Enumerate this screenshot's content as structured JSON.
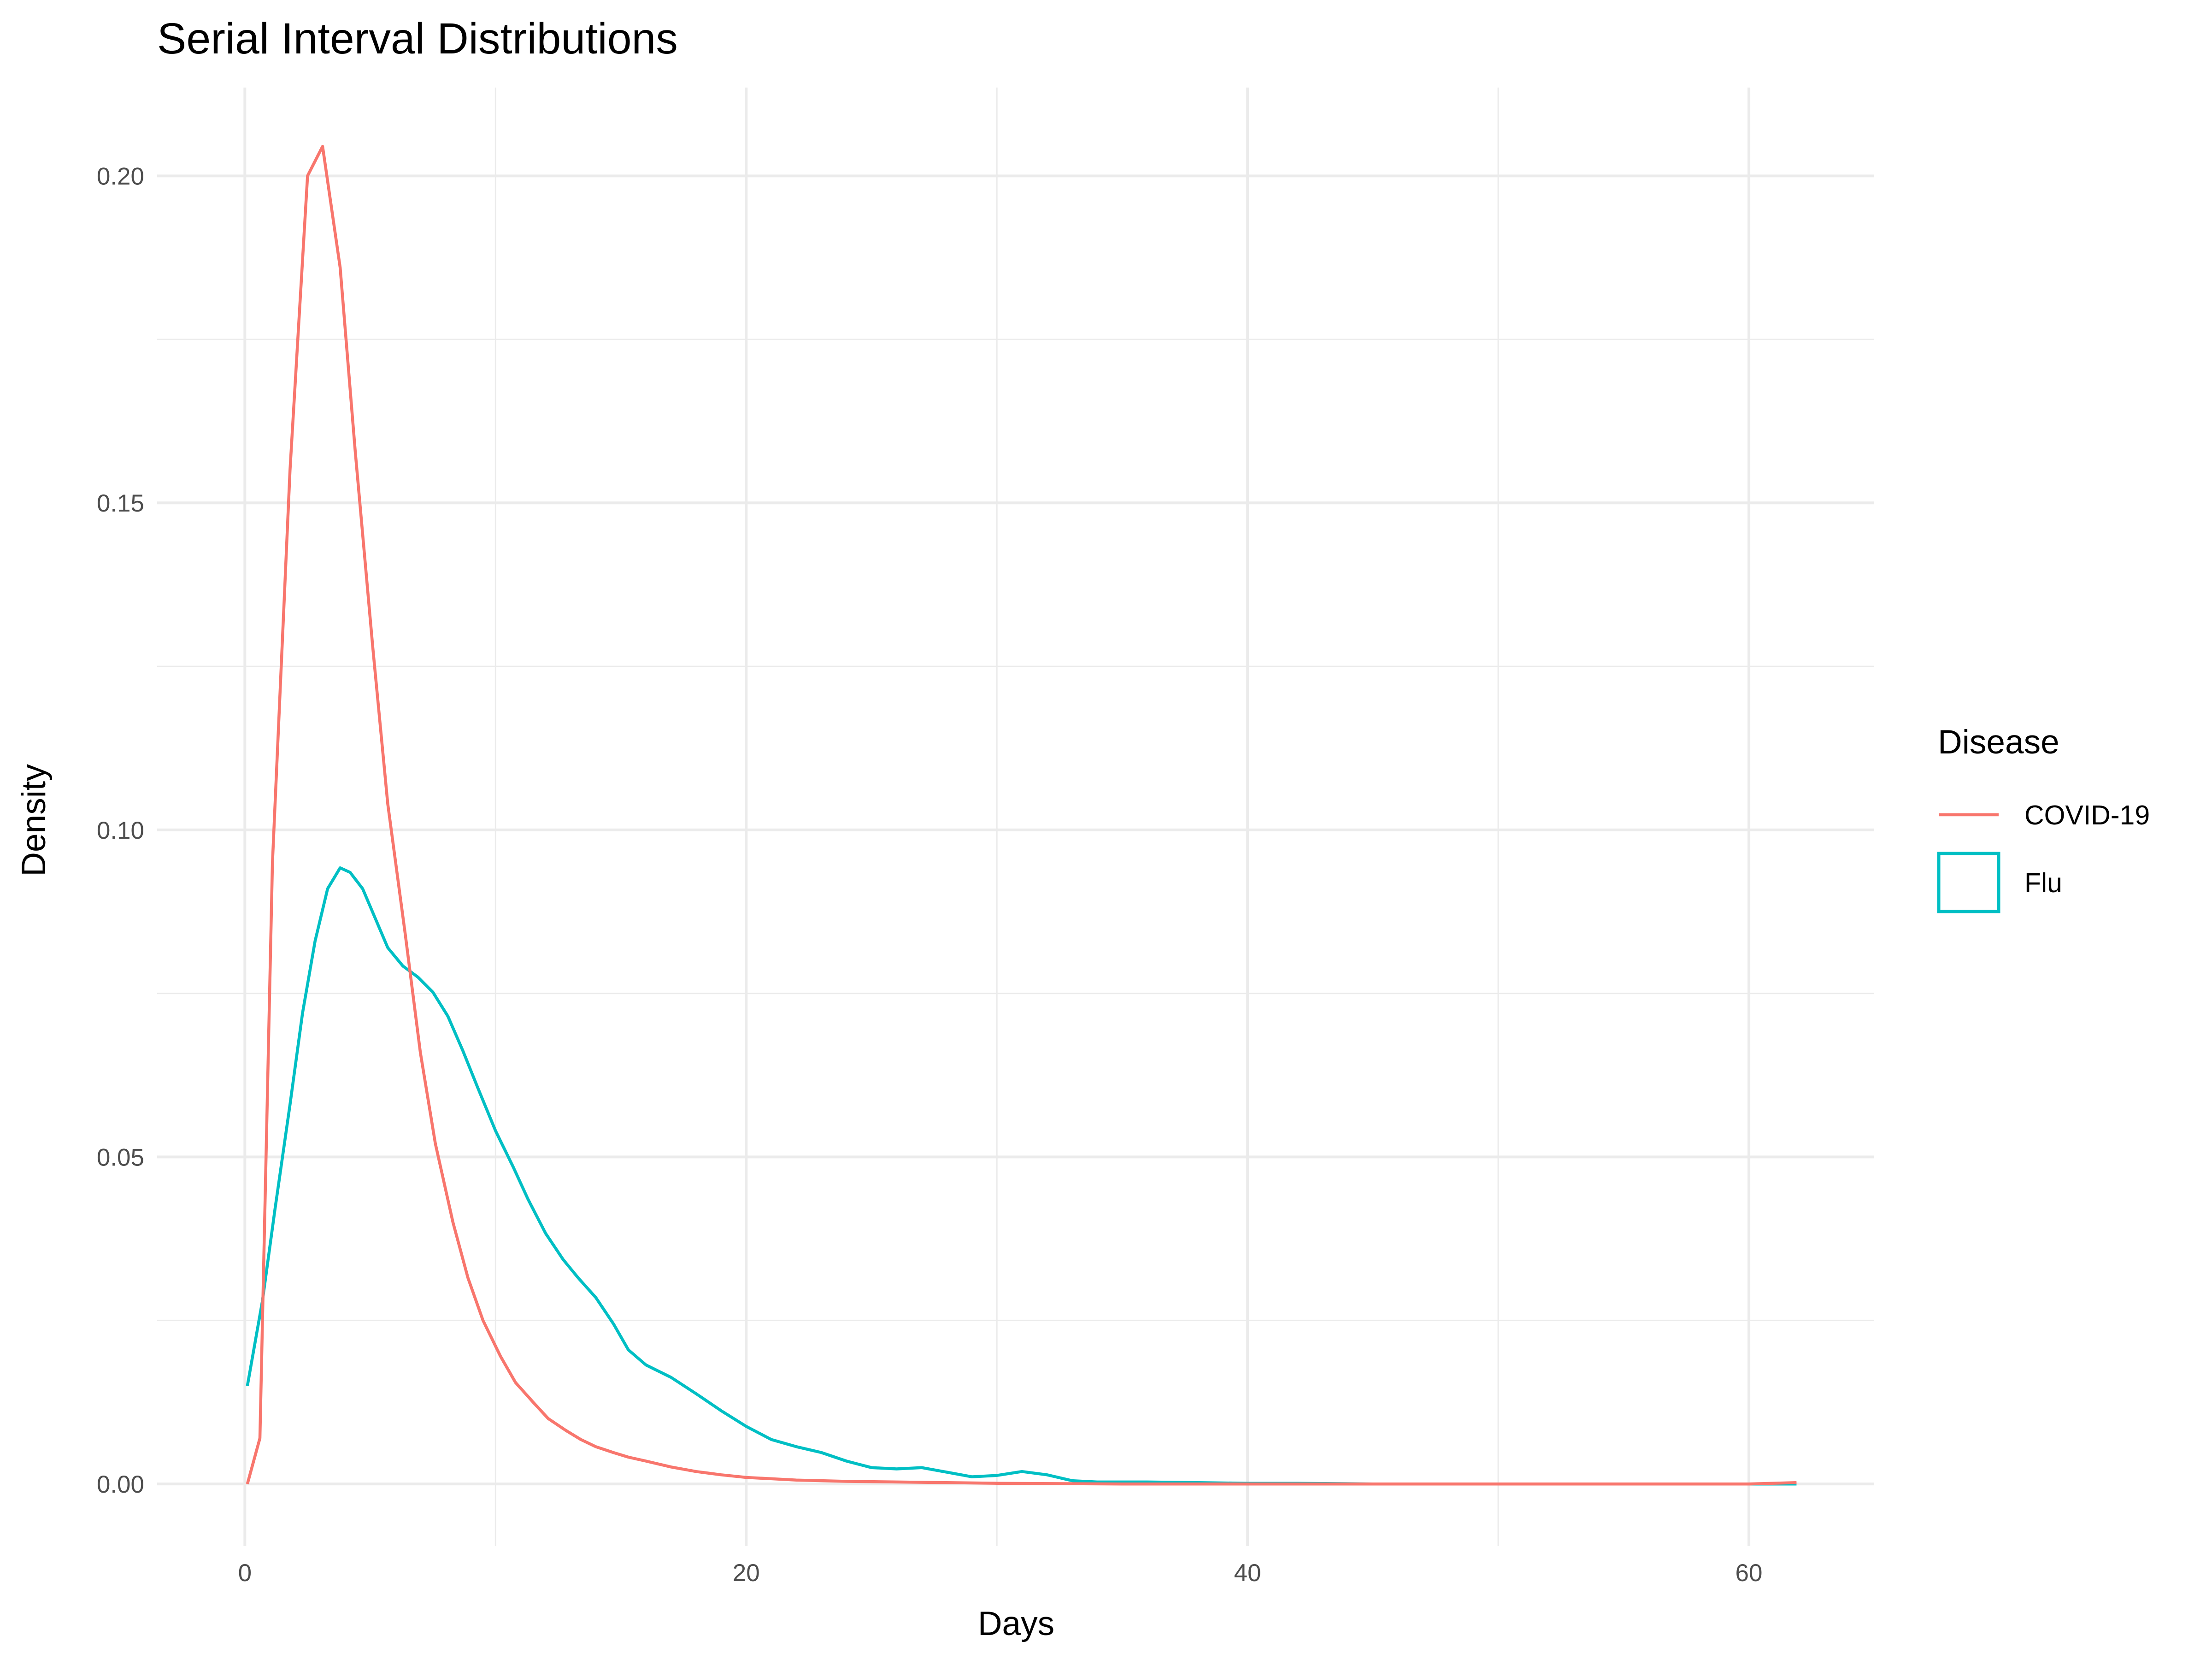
{
  "chart_data": {
    "type": "line",
    "title": "Serial Interval Distributions",
    "xlabel": "Days",
    "ylabel": "Density",
    "xlim": [
      -3.5,
      65
    ],
    "ylim": [
      -0.0095,
      0.2135
    ],
    "x_ticks": [
      0,
      20,
      40,
      60
    ],
    "x_tick_labels": [
      "0",
      "20",
      "40",
      "60"
    ],
    "x_minor_ticks": [
      10,
      30,
      50
    ],
    "y_ticks": [
      0.0,
      0.05,
      0.1,
      0.15,
      0.2
    ],
    "y_tick_labels": [
      "0.00",
      "0.05",
      "0.10",
      "0.15",
      "0.20"
    ],
    "y_minor_ticks": [
      0.025,
      0.075,
      0.125,
      0.175
    ],
    "grid": true,
    "legend": {
      "title": "Disease",
      "placement": "right"
    },
    "series": [
      {
        "name": "COVID-19",
        "color": "#F8766D",
        "legend_key": "line",
        "x": [
          0.1,
          0.6,
          1.1,
          1.8,
          2.5,
          3.1,
          3.8,
          4.4,
          5.1,
          5.7,
          6.4,
          7.0,
          7.6,
          8.3,
          8.9,
          9.5,
          10.2,
          10.8,
          11.5,
          12.1,
          12.8,
          13.4,
          14.0,
          14.7,
          15.3,
          16.0,
          17.0,
          18.0,
          19.0,
          20.0,
          22.0,
          24.0,
          26.0,
          28.0,
          30.0,
          35.0,
          40.0,
          45.0,
          50.0,
          55.0,
          60.0,
          61.9
        ],
        "y": [
          0.0,
          0.007,
          0.095,
          0.155,
          0.2,
          0.2045,
          0.186,
          0.158,
          0.128,
          0.104,
          0.084,
          0.066,
          0.052,
          0.04,
          0.0315,
          0.025,
          0.0195,
          0.0155,
          0.0125,
          0.01,
          0.0082,
          0.0068,
          0.0057,
          0.0048,
          0.0041,
          0.0035,
          0.0026,
          0.0019,
          0.0014,
          0.001,
          0.0006,
          0.0004,
          0.0003,
          0.0002,
          0.0001,
          0.0,
          0.0,
          0.0,
          0.0,
          0.0,
          0.0,
          0.0002
        ]
      },
      {
        "name": "Flu",
        "color": "#00BFC4",
        "legend_key": "box",
        "x": [
          0.1,
          0.7,
          1.2,
          1.8,
          2.3,
          2.8,
          3.3,
          3.8,
          4.2,
          4.7,
          5.2,
          5.7,
          6.3,
          6.9,
          7.5,
          8.1,
          8.7,
          9.3,
          10.0,
          10.7,
          11.3,
          12.0,
          12.7,
          13.3,
          14.0,
          14.7,
          15.3,
          16.0,
          17.0,
          18.0,
          19.0,
          20.0,
          21.0,
          22.0,
          23.0,
          24.0,
          25.0,
          26.0,
          27.0,
          28.0,
          29.0,
          30.0,
          31.0,
          32.0,
          33.0,
          34.0,
          36.0,
          38.0,
          40.0,
          42.0,
          45.0,
          50.0,
          55.0,
          60.0,
          61.9
        ],
        "y": [
          0.015,
          0.028,
          0.042,
          0.058,
          0.072,
          0.083,
          0.091,
          0.0942,
          0.0935,
          0.091,
          0.0865,
          0.082,
          0.0792,
          0.0775,
          0.0752,
          0.0715,
          0.0662,
          0.0605,
          0.054,
          0.0485,
          0.0435,
          0.0383,
          0.0343,
          0.0315,
          0.0285,
          0.0245,
          0.0205,
          0.0182,
          0.0163,
          0.0138,
          0.0112,
          0.0088,
          0.0068,
          0.0057,
          0.0048,
          0.0035,
          0.0025,
          0.0023,
          0.0025,
          0.0018,
          0.0011,
          0.0013,
          0.0019,
          0.0014,
          0.0005,
          0.0003,
          0.0003,
          0.0002,
          0.0001,
          0.0001,
          0.0,
          0.0,
          0.0,
          0.0,
          0.0
        ]
      }
    ]
  }
}
